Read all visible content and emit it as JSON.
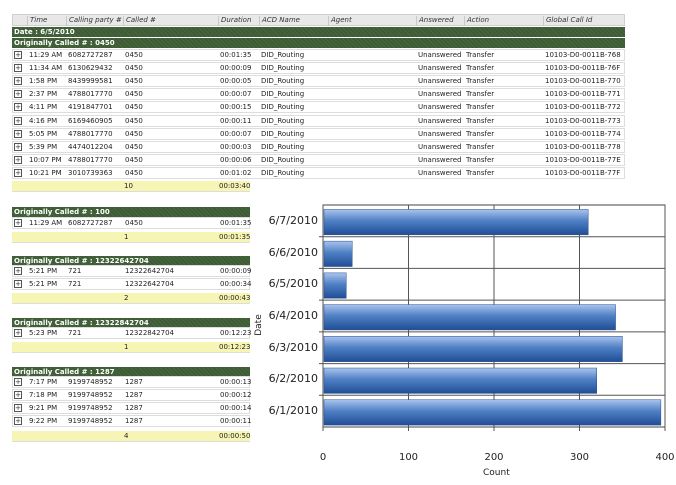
{
  "columns": [
    "Time",
    "Calling party #",
    "Called #",
    "Duration",
    "ACD Name",
    "Agent",
    "Answered",
    "Action",
    "Global Call Id"
  ],
  "date_band": "Date : 6/5/2010",
  "groups": [
    {
      "title": "Originally Called # : 0450",
      "rows": [
        [
          "11:29 AM",
          "6082727287",
          "0450",
          "00:01:35",
          "DID_Routing",
          "",
          "Unanswered",
          "Transfer",
          "10103-D0-0011B-768"
        ],
        [
          "11:34 AM",
          "6130629432",
          "0450",
          "00:00:09",
          "DID_Routing",
          "",
          "Unanswered",
          "Transfer",
          "10103-D0-0011B-76F"
        ],
        [
          "1:58 PM",
          "8439999581",
          "0450",
          "00:00:05",
          "DID_Routing",
          "",
          "Unanswered",
          "Transfer",
          "10103-D0-0011B-770"
        ],
        [
          "2:37 PM",
          "4788017770",
          "0450",
          "00:00:07",
          "DID_Routing",
          "",
          "Unanswered",
          "Transfer",
          "10103-D0-0011B-771"
        ],
        [
          "4:11 PM",
          "4191847701",
          "0450",
          "00:00:15",
          "DID_Routing",
          "",
          "Unanswered",
          "Transfer",
          "10103-D0-0011B-772"
        ],
        [
          "4:16 PM",
          "6169460905",
          "0450",
          "00:00:11",
          "DID_Routing",
          "",
          "Unanswered",
          "Transfer",
          "10103-D0-0011B-773"
        ],
        [
          "5:05 PM",
          "4788017770",
          "0450",
          "00:00:07",
          "DID_Routing",
          "",
          "Unanswered",
          "Transfer",
          "10103-D0-0011B-774"
        ],
        [
          "5:39 PM",
          "4474012204",
          "0450",
          "00:00:03",
          "DID_Routing",
          "",
          "Unanswered",
          "Transfer",
          "10103-D0-0011B-778"
        ],
        [
          "10:07 PM",
          "4788017770",
          "0450",
          "00:00:06",
          "DID_Routing",
          "",
          "Unanswered",
          "Transfer",
          "10103-D0-0011B-77E"
        ],
        [
          "10:21 PM",
          "3010739363",
          "0450",
          "00:01:02",
          "DID_Routing",
          "",
          "Unanswered",
          "Transfer",
          "10103-D0-0011B-77F"
        ]
      ],
      "count": "10",
      "total": "00:03:40"
    },
    {
      "title": "Originally Called # : 100",
      "rows": [
        [
          "11:29 AM",
          "6082727287",
          "0450",
          "00:01:35"
        ]
      ],
      "count": "1",
      "total": "00:01:35"
    },
    {
      "title": "Originally Called # : 12322642704",
      "rows": [
        [
          "5:21 PM",
          "721",
          "12322642704",
          "00:00:09"
        ],
        [
          "5:21 PM",
          "721",
          "12322642704",
          "00:00:34"
        ]
      ],
      "count": "2",
      "total": "00:00:43"
    },
    {
      "title": "Originally Called # : 12322842704",
      "rows": [
        [
          "5:23 PM",
          "721",
          "12322842704",
          "00:12:23"
        ]
      ],
      "count": "1",
      "total": "00:12:23"
    },
    {
      "title": "Originally Called # : 1287",
      "rows": [
        [
          "7:17 PM",
          "9199748952",
          "1287",
          "00:00:13"
        ],
        [
          "7:18 PM",
          "9199748952",
          "1287",
          "00:00:12"
        ],
        [
          "9:21 PM",
          "9199748952",
          "1287",
          "00:00:14"
        ],
        [
          "9:22 PM",
          "9199748952",
          "1287",
          "00:00:11"
        ]
      ],
      "count": "4",
      "total": "00:00:50"
    }
  ],
  "chart_data": {
    "type": "bar",
    "orientation": "horizontal",
    "categories": [
      "6/7/2010",
      "6/6/2010",
      "6/5/2010",
      "6/4/2010",
      "6/3/2010",
      "6/2/2010",
      "6/1/2010"
    ],
    "values": [
      309,
      33,
      26,
      341,
      349,
      319,
      394
    ],
    "xlabel": "Count",
    "ylabel": "Date",
    "xlim": [
      0,
      400
    ],
    "xticks": [
      "0",
      "100",
      "200",
      "300",
      "400"
    ],
    "grid": true,
    "bar_color": "#4f7fc4"
  }
}
